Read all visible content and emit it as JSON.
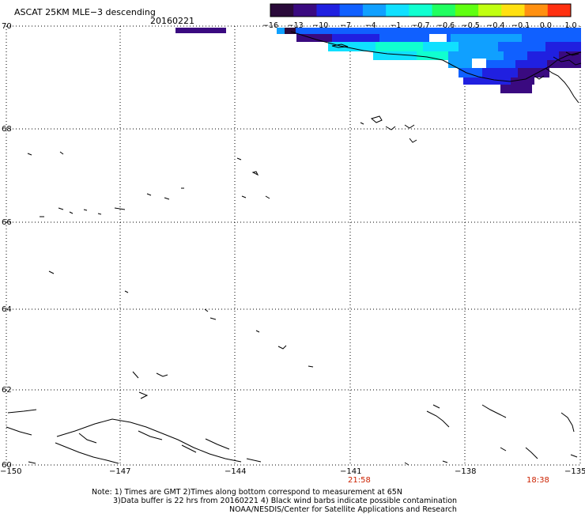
{
  "header": {
    "title": "ASCAT 25KM MLE−3 descending",
    "date": "20160221"
  },
  "colorbar": {
    "labels": [
      "−16",
      "−13",
      "−10",
      "−7",
      "−4",
      "−1",
      "−0.7",
      "−0.6",
      "−0.5",
      "−0.4",
      "−0.1",
      "0.0",
      "1.0"
    ],
    "colors": [
      "#2a0a3a",
      "#3a0a80",
      "#2020e0",
      "#1060ff",
      "#10a0ff",
      "#10e0ff",
      "#10ffd0",
      "#20ff60",
      "#60ff10",
      "#c0ff10",
      "#ffe010",
      "#ff9010",
      "#ff3010"
    ]
  },
  "map": {
    "lat_labels": [
      "70",
      "68",
      "66",
      "64",
      "62",
      "60"
    ],
    "lon_labels": [
      "−150",
      "−147",
      "−144",
      "−141",
      "−138",
      "−135"
    ],
    "time_labels": [
      "21:58",
      "18:38"
    ],
    "time_color": "#cc2200",
    "coastline_color": "#000000",
    "grid_color": "#000000"
  },
  "footer": {
    "line1": "Note: 1) Times are GMT 2)Times along bottom correspond to measurement at 65N",
    "line2": "3)Data buffer is 22 hrs from 20160221 4) Black wind barbs indicate possible contamination",
    "line3": "NOAA/NESDIS/Center for Satellite Applications and Research"
  }
}
